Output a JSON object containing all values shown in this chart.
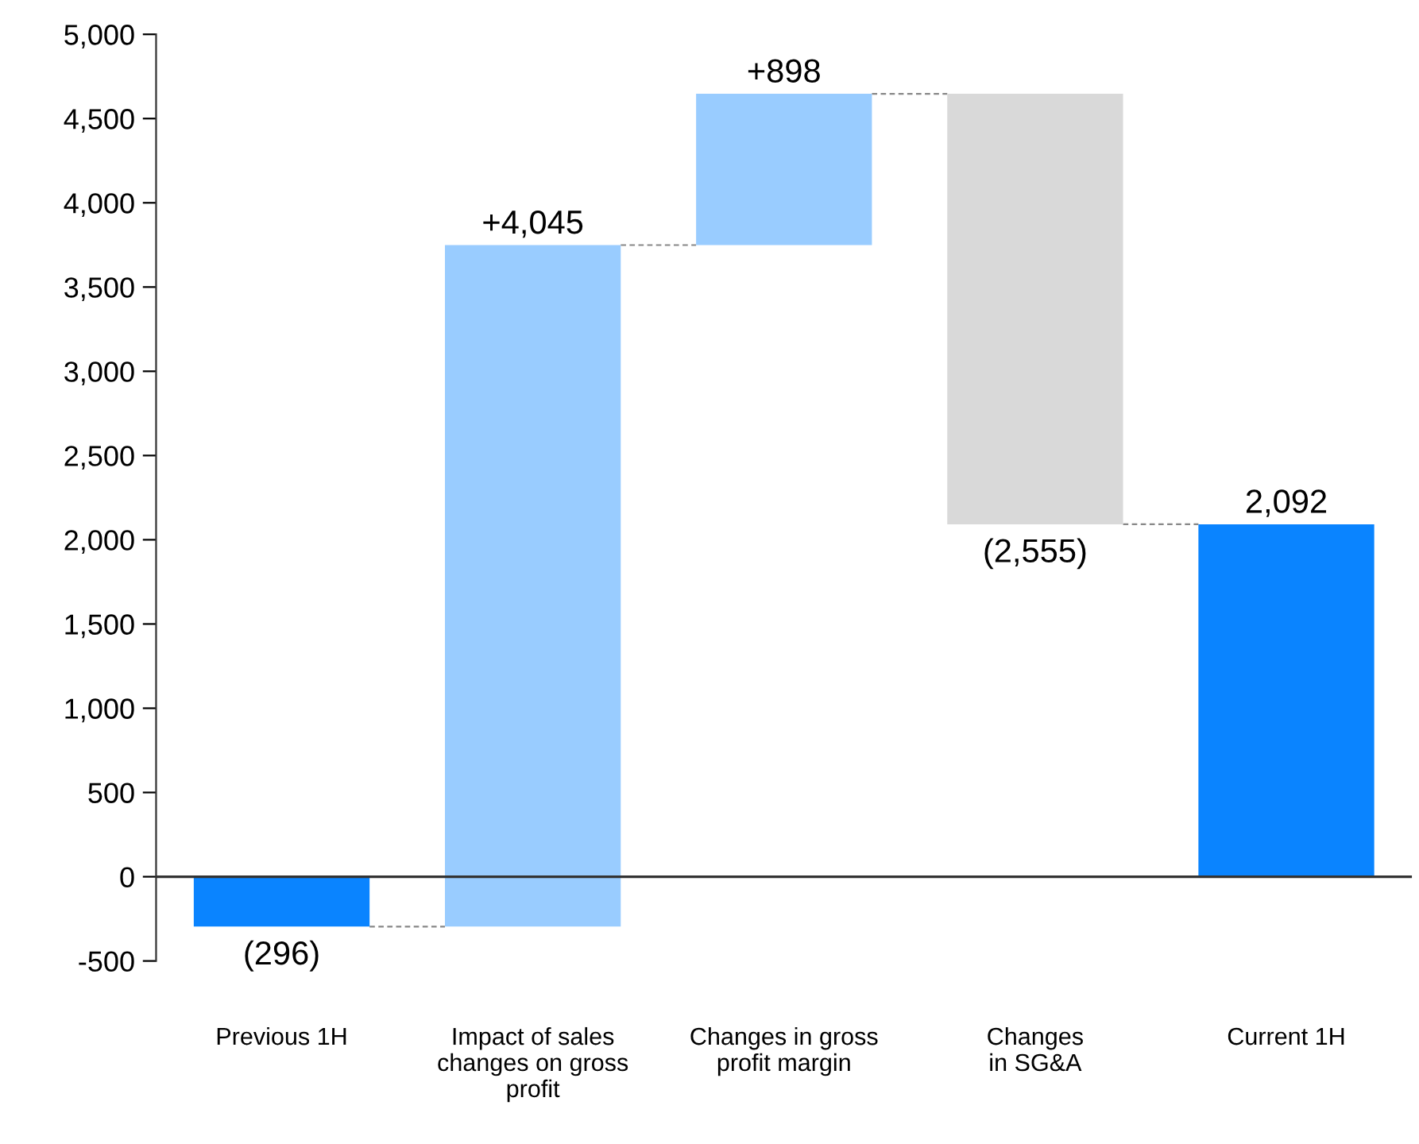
{
  "chart_data": {
    "type": "bar",
    "categories": [
      "Previous 1H",
      "Impact of sales\nchanges on gross\nprofit",
      "Changes in gross\nprofit margin",
      "Changes\nin SG&A",
      "Current 1H"
    ],
    "values": [
      -296,
      4045,
      898,
      -2555,
      2092
    ],
    "base": [
      0,
      -296,
      3749,
      4647,
      0
    ],
    "colors": [
      "#0a84ff",
      "#99ccff",
      "#99ccff",
      "#d9d9d9",
      "#0a84ff"
    ],
    "value_labels": [
      "(296)",
      "+4,045",
      "+898",
      "(2,555)",
      "2,092"
    ],
    "ylim": [
      -500,
      5000
    ],
    "yticks": [
      {
        "value": -500,
        "label": "-500"
      },
      0,
      500,
      {
        "value": 1000,
        "label": "1,000"
      },
      {
        "value": 1500,
        "label": "1,500"
      },
      {
        "value": 2000,
        "label": "2,000"
      },
      {
        "value": 2500,
        "label": "2,500"
      },
      {
        "value": 3000,
        "label": "3,000"
      },
      {
        "value": 3500,
        "label": "3,500"
      },
      {
        "value": 4000,
        "label": "4,000"
      },
      {
        "value": 4500,
        "label": "4,500"
      },
      {
        "value": 5000,
        "label": "5,000"
      }
    ],
    "ref_lines": [
      {
        "axis": "y",
        "value": 0,
        "color": "#333333",
        "line_style": "solid"
      }
    ],
    "grid": false,
    "legend": false
  }
}
